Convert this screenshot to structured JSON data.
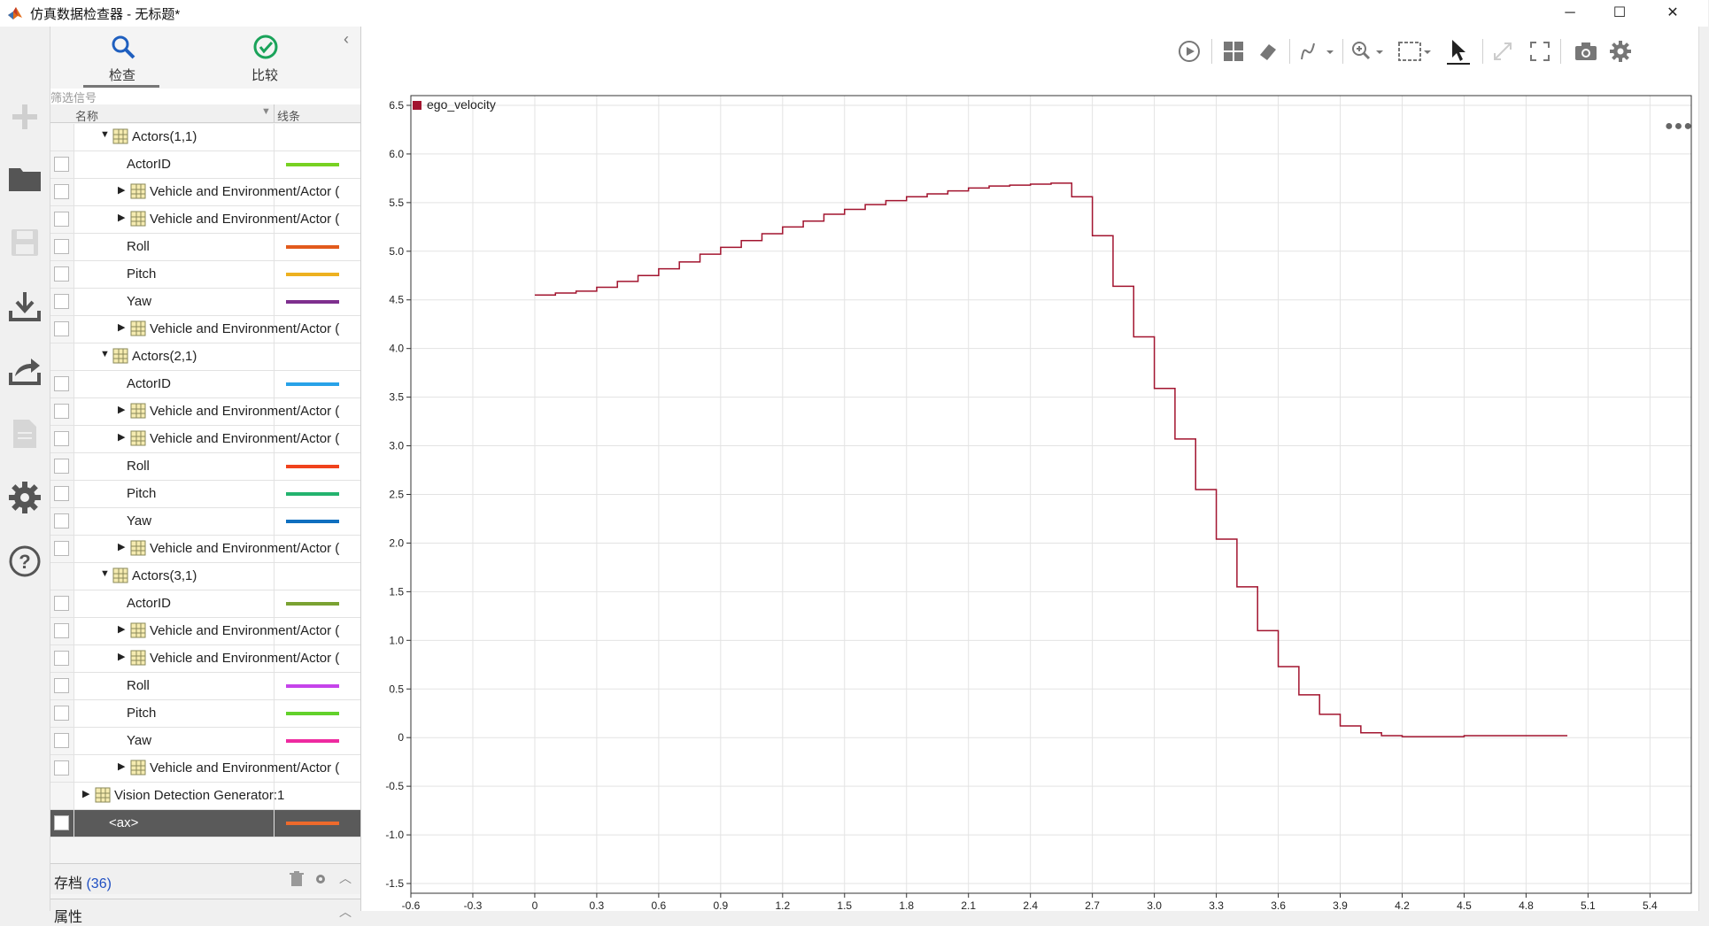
{
  "window": {
    "title": "仿真数据检查器 - 无标题*",
    "controls": [
      "minimize",
      "maximize",
      "close"
    ]
  },
  "left_toolbar": [
    {
      "icon": "plus-icon"
    },
    {
      "icon": "folder-icon"
    },
    {
      "icon": "save-icon"
    },
    {
      "icon": "download-icon"
    },
    {
      "icon": "share-icon"
    },
    {
      "icon": "document-icon"
    },
    {
      "icon": "gear-icon"
    },
    {
      "icon": "help-icon"
    }
  ],
  "tabs": [
    {
      "label": "检查",
      "icon": "search-icon",
      "active": true
    },
    {
      "label": "比较",
      "icon": "check-circle-icon",
      "active": false
    }
  ],
  "filter": {
    "placeholder": "筛选信号"
  },
  "columns": {
    "name": "名称",
    "line": "线条"
  },
  "tree_rows": [
    {
      "indent": 1,
      "expand": "open",
      "group": true,
      "label": "Actors(1,1)",
      "checkbox": false,
      "line_color": null
    },
    {
      "indent": 2,
      "expand": "none",
      "group": false,
      "label": "ActorID",
      "checkbox": true,
      "line_color": "#77d122"
    },
    {
      "indent": 2,
      "expand": "closed",
      "group": true,
      "label": "Vehicle and Environment/Actor (",
      "checkbox": true,
      "line_color": null
    },
    {
      "indent": 2,
      "expand": "closed",
      "group": true,
      "label": "Vehicle and Environment/Actor (",
      "checkbox": true,
      "line_color": null
    },
    {
      "indent": 2,
      "expand": "none",
      "group": false,
      "label": "Roll",
      "checkbox": true,
      "line_color": "#e25a1c"
    },
    {
      "indent": 2,
      "expand": "none",
      "group": false,
      "label": "Pitch",
      "checkbox": true,
      "line_color": "#edb120"
    },
    {
      "indent": 2,
      "expand": "none",
      "group": false,
      "label": "Yaw",
      "checkbox": true,
      "line_color": "#7e2f8e"
    },
    {
      "indent": 2,
      "expand": "closed",
      "group": true,
      "label": "Vehicle and Environment/Actor (",
      "checkbox": true,
      "line_color": null
    },
    {
      "indent": 1,
      "expand": "open",
      "group": true,
      "label": "Actors(2,1)",
      "checkbox": false,
      "line_color": null
    },
    {
      "indent": 2,
      "expand": "none",
      "group": false,
      "label": "ActorID",
      "checkbox": true,
      "line_color": "#28a2e8"
    },
    {
      "indent": 2,
      "expand": "closed",
      "group": true,
      "label": "Vehicle and Environment/Actor (",
      "checkbox": true,
      "line_color": null
    },
    {
      "indent": 2,
      "expand": "closed",
      "group": true,
      "label": "Vehicle and Environment/Actor (",
      "checkbox": true,
      "line_color": null
    },
    {
      "indent": 2,
      "expand": "none",
      "group": false,
      "label": "Roll",
      "checkbox": true,
      "line_color": "#f0421c"
    },
    {
      "indent": 2,
      "expand": "none",
      "group": false,
      "label": "Pitch",
      "checkbox": true,
      "line_color": "#23b36e"
    },
    {
      "indent": 2,
      "expand": "none",
      "group": false,
      "label": "Yaw",
      "checkbox": true,
      "line_color": "#0f6fbf"
    },
    {
      "indent": 2,
      "expand": "closed",
      "group": true,
      "label": "Vehicle and Environment/Actor (",
      "checkbox": true,
      "line_color": null
    },
    {
      "indent": 1,
      "expand": "open",
      "group": true,
      "label": "Actors(3,1)",
      "checkbox": false,
      "line_color": null
    },
    {
      "indent": 2,
      "expand": "none",
      "group": false,
      "label": "ActorID",
      "checkbox": true,
      "line_color": "#7aa232"
    },
    {
      "indent": 2,
      "expand": "closed",
      "group": true,
      "label": "Vehicle and Environment/Actor (",
      "checkbox": true,
      "line_color": null
    },
    {
      "indent": 2,
      "expand": "closed",
      "group": true,
      "label": "Vehicle and Environment/Actor (",
      "checkbox": true,
      "line_color": null
    },
    {
      "indent": 2,
      "expand": "none",
      "group": false,
      "label": "Roll",
      "checkbox": true,
      "line_color": "#c543ea"
    },
    {
      "indent": 2,
      "expand": "none",
      "group": false,
      "label": "Pitch",
      "checkbox": true,
      "line_color": "#62d12a"
    },
    {
      "indent": 2,
      "expand": "none",
      "group": false,
      "label": "Yaw",
      "checkbox": true,
      "line_color": "#ee2aa0"
    },
    {
      "indent": 2,
      "expand": "closed",
      "group": true,
      "label": "Vehicle and Environment/Actor (",
      "checkbox": true,
      "line_color": null
    },
    {
      "indent": 0,
      "expand": "closed",
      "group": true,
      "label": "Vision Detection Generator:1",
      "checkbox": false,
      "line_color": null
    },
    {
      "indent": 1,
      "expand": "none",
      "group": false,
      "label": "<ax>",
      "checkbox": true,
      "line_color": "#ee6a2c",
      "selected": true
    }
  ],
  "archive": {
    "label": "存档",
    "count": "(36)"
  },
  "properties": {
    "label": "属性"
  },
  "plot_toolbar": [
    "play-icon",
    "layout-icon",
    "eraser-icon",
    "signal-icon",
    "zoom-icon",
    "fit-icon",
    "cursor-icon",
    "expand-icon",
    "fullscreen-icon",
    "camera-icon",
    "gear-icon"
  ],
  "chart_data": {
    "type": "line",
    "series": [
      {
        "name": "ego_velocity",
        "color": "#a2142f",
        "step": true,
        "x": [
          0,
          0.1,
          0.2,
          0.3,
          0.4,
          0.5,
          0.6,
          0.7,
          0.8,
          0.9,
          1.0,
          1.1,
          1.2,
          1.3,
          1.4,
          1.5,
          1.6,
          1.7,
          1.8,
          1.9,
          2.0,
          2.1,
          2.2,
          2.3,
          2.4,
          2.5,
          2.6,
          2.7,
          2.8,
          2.9,
          3.0,
          3.1,
          3.2,
          3.3,
          3.4,
          3.5,
          3.6,
          3.7,
          3.8,
          3.9,
          4.0,
          4.1,
          4.2,
          4.5,
          5.0
        ],
        "y": [
          4.55,
          4.57,
          4.59,
          4.63,
          4.69,
          4.75,
          4.82,
          4.89,
          4.97,
          5.04,
          5.11,
          5.18,
          5.25,
          5.31,
          5.38,
          5.43,
          5.48,
          5.52,
          5.56,
          5.59,
          5.62,
          5.65,
          5.67,
          5.68,
          5.69,
          5.7,
          5.56,
          5.16,
          4.64,
          4.12,
          3.59,
          3.07,
          2.55,
          2.04,
          1.55,
          1.1,
          0.73,
          0.44,
          0.24,
          0.12,
          0.05,
          0.02,
          0.01,
          0.02,
          0.02
        ]
      }
    ],
    "xlim": [
      -0.6,
      5.6
    ],
    "ylim": [
      -1.6,
      6.6
    ],
    "xticks": [
      -0.6,
      -0.3,
      0,
      0.3,
      0.6,
      0.9,
      1.2,
      1.5,
      1.8,
      2.1,
      2.4,
      2.7,
      3.0,
      3.3,
      3.6,
      3.9,
      4.2,
      4.5,
      4.8,
      5.1,
      5.4
    ],
    "xticklabels": [
      "-0.6",
      "-0.3",
      "0",
      "0.3",
      "0.6",
      "0.9",
      "1.2",
      "1.5",
      "1.8",
      "2.1",
      "2.4",
      "2.7",
      "3.0",
      "3.3",
      "3.6",
      "3.9",
      "4.2",
      "4.5",
      "4.8",
      "5.1",
      "5.4"
    ],
    "yticks": [
      -1.5,
      -1.0,
      -0.5,
      0,
      0.5,
      1.0,
      1.5,
      2.0,
      2.5,
      3.0,
      3.5,
      4.0,
      4.5,
      5.0,
      5.5,
      6.0,
      6.5
    ],
    "yticklabels": [
      "-1.5",
      "-1.0",
      "-0.5",
      "0",
      "0.5",
      "1.0",
      "1.5",
      "2.0",
      "2.5",
      "3.0",
      "3.5",
      "4.0",
      "4.5",
      "5.0",
      "5.5",
      "6.0",
      "6.5"
    ],
    "grid": true,
    "legend": "top-left"
  }
}
